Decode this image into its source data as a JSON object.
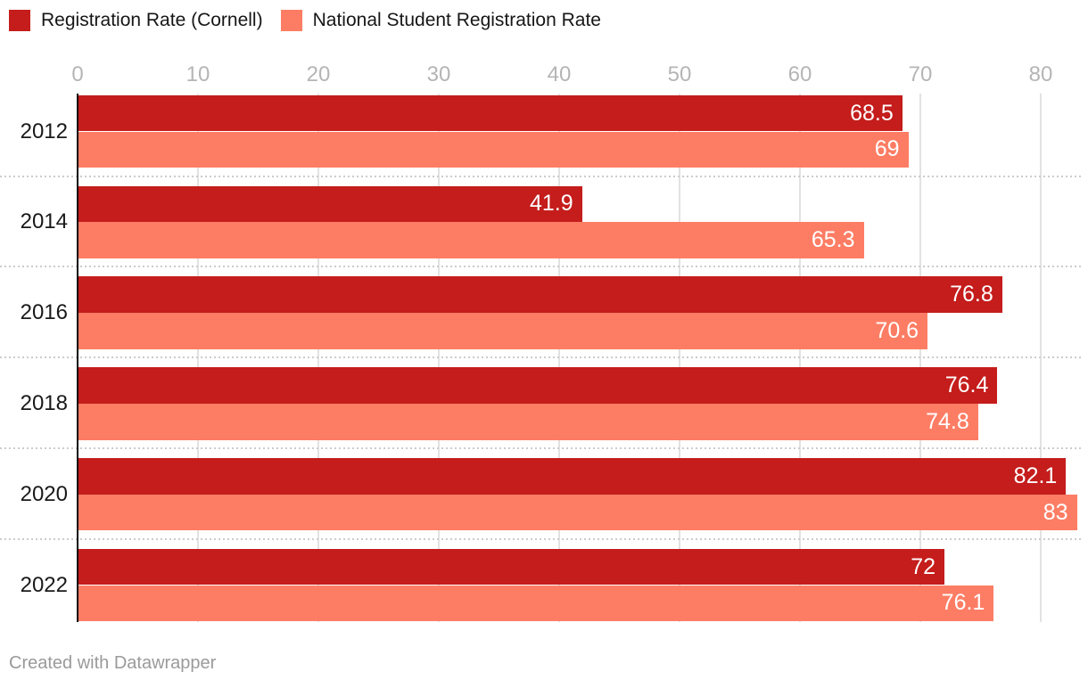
{
  "legend": {
    "items": [
      {
        "label": "Registration Rate (Cornell)",
        "color": "#c41d1c"
      },
      {
        "label": "National Student Registration Rate",
        "color": "#fd7d64"
      }
    ]
  },
  "chart_data": {
    "type": "bar",
    "orientation": "horizontal",
    "title": "",
    "xlabel": "",
    "ylabel": "",
    "categories": [
      "2012",
      "2014",
      "2016",
      "2018",
      "2020",
      "2022"
    ],
    "series": [
      {
        "name": "Registration Rate (Cornell)",
        "color": "#c41d1c",
        "values": [
          68.5,
          41.9,
          76.8,
          76.4,
          82.1,
          72
        ],
        "value_labels": [
          "68.5",
          "41.9",
          "76.8",
          "76.4",
          "82.1",
          "72"
        ]
      },
      {
        "name": "National Student Registration Rate",
        "color": "#fd7d64",
        "values": [
          69,
          65.3,
          70.6,
          74.8,
          83,
          76.1
        ],
        "value_labels": [
          "69",
          "65.3",
          "70.6",
          "74.8",
          "83",
          "76.1"
        ]
      }
    ],
    "x_axis": {
      "min": 0,
      "max": 80,
      "tick_step": 10,
      "tick_labels": [
        "0",
        "10",
        "20",
        "30",
        "40",
        "50",
        "60",
        "70",
        "80"
      ],
      "tick_color": "#b5b5b5",
      "gridline_color": "#e2e2e2"
    },
    "grid": true,
    "legend_position": "top-left",
    "value_label_color": "#ffffff"
  },
  "footer": {
    "credit": "Created with Datawrapper"
  }
}
